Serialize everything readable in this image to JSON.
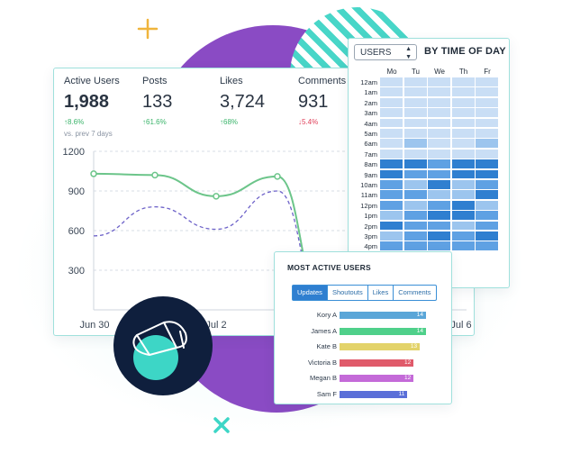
{
  "colors": {
    "accent_green": "#6cc58a",
    "purple": "#8a4bc4",
    "teal": "#3dd6c6",
    "navy": "#0f1f3d",
    "heat_levels": [
      "#e4eefa",
      "#c9def5",
      "#9cc5ee",
      "#5fa1e3",
      "#2f7fd0"
    ]
  },
  "stats": [
    {
      "label": "Active Users",
      "value": "1,988",
      "change": "↑8.6%",
      "direction": "up"
    },
    {
      "label": "Posts",
      "value": "133",
      "change": "↑61.6%",
      "direction": "up"
    },
    {
      "label": "Likes",
      "value": "3,724",
      "change": "↑68%",
      "direction": "up"
    },
    {
      "label": "Comments",
      "value": "931",
      "change": "↓5.4%",
      "direction": "down"
    }
  ],
  "comparison_text": "vs. prev 7 days",
  "chart_data": {
    "type": "line",
    "y_ticks": [
      "1200",
      "900",
      "600",
      "300"
    ],
    "x_tick_labels": [
      "Jun 30",
      "Jul 2",
      "Jul 6"
    ],
    "ylim": [
      0,
      1200
    ],
    "series": [
      {
        "style": "solid",
        "color": "#6cc58a",
        "values": [
          1030,
          1020,
          860,
          1010,
          30
        ]
      },
      {
        "style": "dashed",
        "color": "#6e63c9",
        "values": [
          560,
          780,
          610,
          900,
          10
        ]
      }
    ],
    "grid": "horizontal-dashed"
  },
  "heatmap": {
    "select_value": "USERS",
    "title": "BY TIME OF DAY",
    "days": [
      "Mo",
      "Tu",
      "We",
      "Th",
      "Fr"
    ],
    "hours": [
      "12am",
      "1am",
      "2am",
      "3am",
      "4am",
      "5am",
      "6am",
      "7am",
      "8am",
      "9am",
      "10am",
      "11am",
      "12pm",
      "1pm",
      "2pm",
      "3pm",
      "4pm"
    ],
    "levels": [
      [
        1,
        1,
        1,
        1,
        1
      ],
      [
        1,
        1,
        1,
        1,
        1
      ],
      [
        1,
        1,
        1,
        1,
        1
      ],
      [
        1,
        1,
        1,
        1,
        1
      ],
      [
        1,
        1,
        1,
        1,
        1
      ],
      [
        1,
        1,
        1,
        1,
        1
      ],
      [
        1,
        2,
        1,
        1,
        2
      ],
      [
        1,
        1,
        1,
        1,
        1
      ],
      [
        4,
        4,
        3,
        4,
        4
      ],
      [
        4,
        3,
        3,
        4,
        4
      ],
      [
        3,
        2,
        4,
        2,
        3
      ],
      [
        3,
        3,
        2,
        2,
        4
      ],
      [
        3,
        2,
        3,
        4,
        2
      ],
      [
        2,
        3,
        4,
        4,
        3
      ],
      [
        4,
        3,
        3,
        2,
        3
      ],
      [
        2,
        3,
        4,
        3,
        4
      ],
      [
        3,
        3,
        3,
        3,
        3
      ]
    ]
  },
  "most_active": {
    "title": "MOST ACTIVE USERS",
    "tabs": [
      "Updates",
      "Shoutouts",
      "Likes",
      "Comments"
    ],
    "active_tab": 0,
    "users": [
      {
        "name": "Kory A",
        "count": "14",
        "value": 14,
        "color": "#5aa6d8"
      },
      {
        "name": "James A",
        "count": "14",
        "value": 14,
        "color": "#4fd08a"
      },
      {
        "name": "Kate B",
        "count": "13",
        "value": 13,
        "color": "#e3d36a"
      },
      {
        "name": "Victoria B",
        "count": "12",
        "value": 12,
        "color": "#e05a6a"
      },
      {
        "name": "Megan B",
        "count": "12",
        "value": 12,
        "color": "#c46ad8"
      },
      {
        "name": "Sam F",
        "count": "11",
        "value": 11,
        "color": "#5a6fd8"
      }
    ],
    "max_value": 14
  },
  "icons": {
    "megaphone": "megaphone-icon",
    "plus": "plus-icon",
    "cross": "x-icon"
  }
}
